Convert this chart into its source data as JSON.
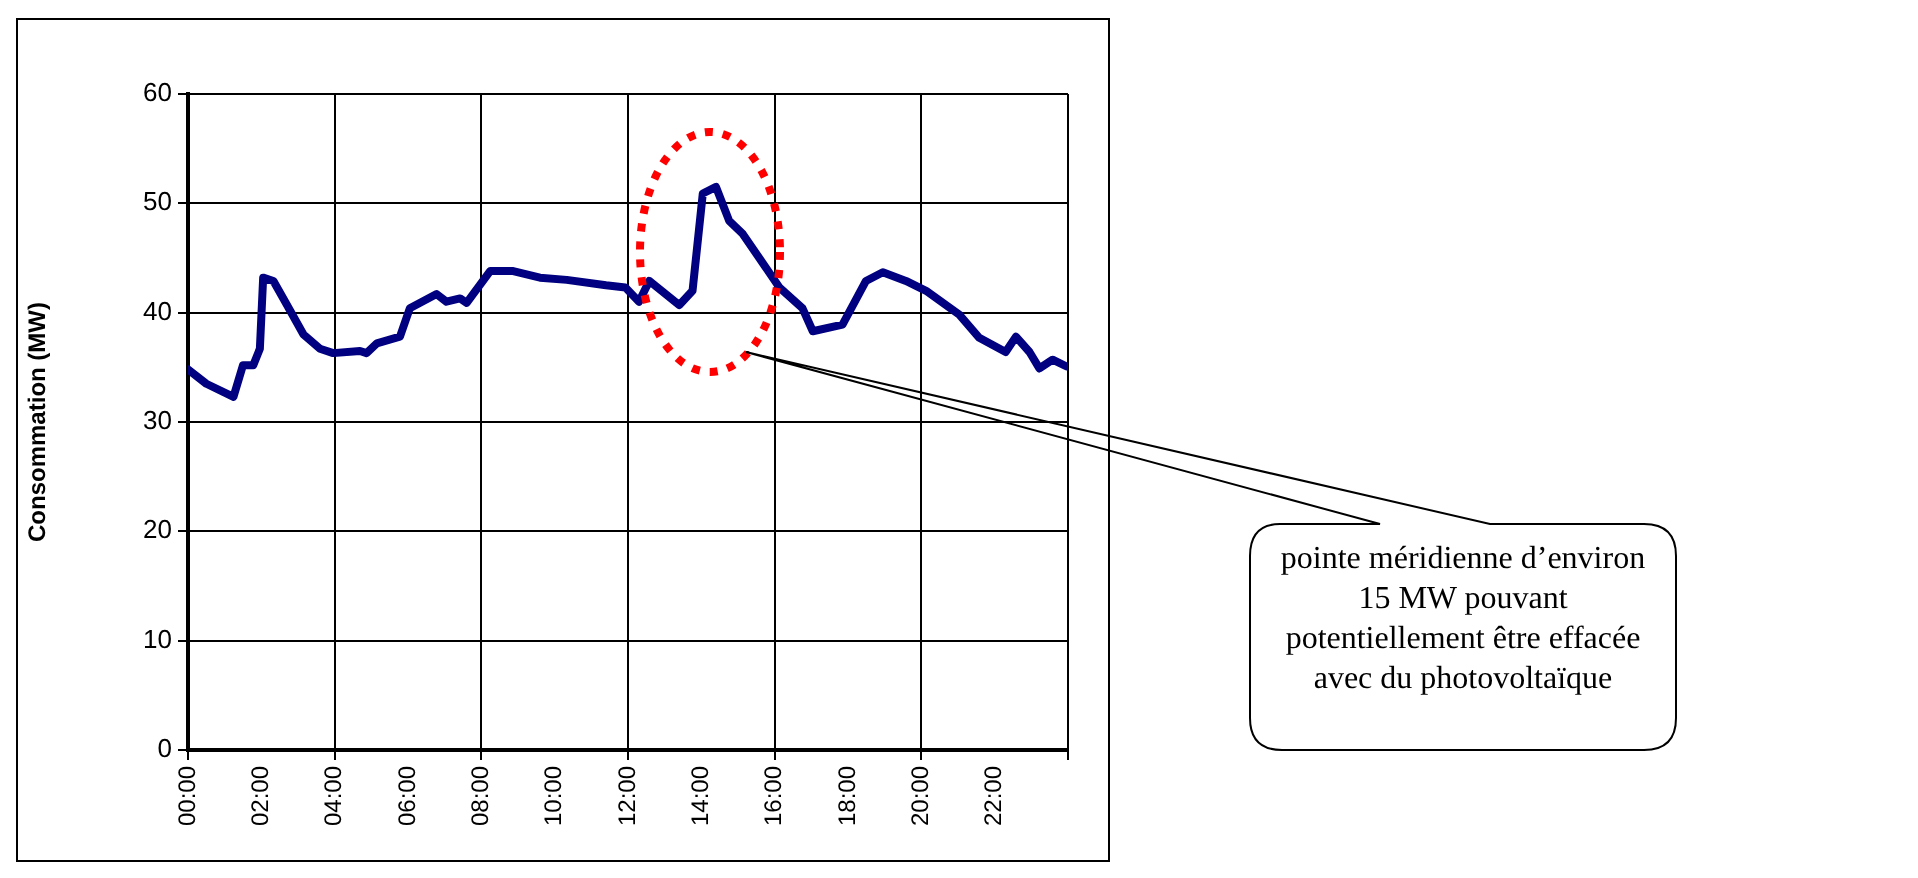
{
  "chart_data": {
    "type": "line",
    "ylabel": "Consommation (MW)",
    "x": [
      0,
      0.5,
      1.24,
      1.5,
      1.78,
      1.96,
      2.05,
      2.33,
      2.7,
      3.15,
      3.6,
      3.96,
      4.69,
      4.87,
      5.15,
      5.78,
      6.05,
      6.78,
      7.05,
      7.42,
      7.6,
      8.24,
      8.87,
      9.6,
      10.33,
      11.4,
      11.93,
      12.3,
      12.58,
      13.4,
      13.76,
      14.04,
      14.4,
      14.76,
      15.13,
      15.58,
      16.13,
      16.76,
      17.04,
      17.85,
      18.49,
      18.95,
      19.58,
      20.13,
      21.04,
      21.58,
      22.3,
      22.58,
      22.95,
      23.22,
      23.58,
      23.95
    ],
    "series": [
      {
        "color": "#000080",
        "values": [
          34.8,
          33.5,
          32.3,
          35.2,
          35.2,
          36.7,
          43.2,
          42.9,
          40.7,
          38.0,
          36.7,
          36.3,
          36.5,
          36.3,
          37.2,
          37.8,
          40.4,
          41.7,
          41.0,
          41.3,
          40.9,
          43.8,
          43.8,
          43.2,
          43.0,
          42.5,
          42.3,
          41.0,
          42.9,
          40.7,
          42.0,
          50.9,
          51.5,
          48.4,
          47.2,
          45.0,
          42.3,
          40.4,
          38.3,
          38.9,
          42.9,
          43.7,
          42.9,
          42.0,
          39.8,
          37.7,
          36.4,
          37.8,
          36.4,
          34.9,
          35.7,
          35.1
        ]
      }
    ],
    "xlim": [
      0,
      24
    ],
    "xticks": [
      {
        "value": 0,
        "label": "00:00"
      },
      {
        "value": 2,
        "label": "02:00"
      },
      {
        "value": 4,
        "label": "04:00"
      },
      {
        "value": 6,
        "label": "06:00"
      },
      {
        "value": 8,
        "label": "08:00"
      },
      {
        "value": 10,
        "label": "10:00"
      },
      {
        "value": 12,
        "label": "12:00"
      },
      {
        "value": 14,
        "label": "14:00"
      },
      {
        "value": 16,
        "label": "16:00"
      },
      {
        "value": 18,
        "label": "18:00"
      },
      {
        "value": 20,
        "label": "20:00"
      },
      {
        "value": 22,
        "label": "22:00"
      },
      {
        "value": 24,
        "label": null
      }
    ],
    "ylim": [
      0,
      60
    ],
    "yticks": [
      0,
      10,
      20,
      30,
      40,
      50,
      60
    ],
    "grid": true,
    "legend": false,
    "marker": "none",
    "line_style": "solid",
    "annotations": [
      "pointe méridienne d’environ 15 MW pouvant potentiellement être effacée avec du photovoltaïque"
    ]
  }
}
